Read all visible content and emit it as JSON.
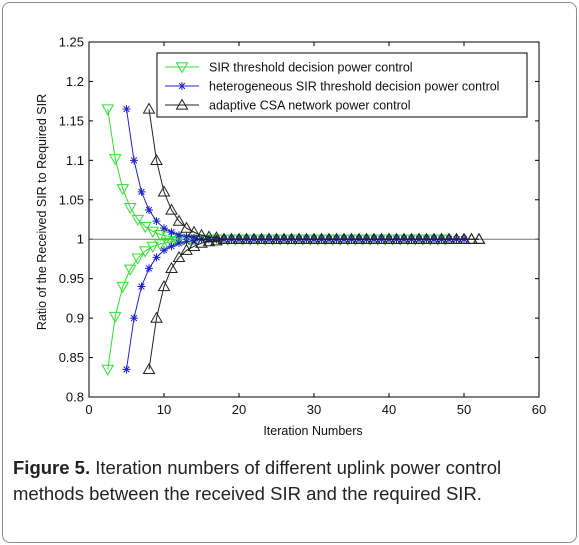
{
  "caption": {
    "label": "Figure 5.",
    "text": " Iteration numbers of different uplink power control methods between the received SIR and the required SIR."
  },
  "chart_data": {
    "type": "line",
    "xlabel": "Iteration Numbers",
    "ylabel": "Ratio of the Received SIR to Required SIR",
    "xlim": [
      0,
      60
    ],
    "ylim": [
      0.8,
      1.25
    ],
    "xticks": [
      0,
      10,
      20,
      30,
      40,
      50,
      60
    ],
    "yticks": [
      0.8,
      0.85,
      0.9,
      0.95,
      1,
      1.05,
      1.1,
      1.15,
      1.2,
      1.25
    ],
    "grid": false,
    "legend_position": "top-right",
    "reference_line": 1,
    "series": [
      {
        "name": "SIR threshold decision power control",
        "color": "#33dd33",
        "marker": "triangle-down",
        "start_x": 2.5,
        "end_x": 47,
        "upper": [
          1.165,
          1.102,
          1.064,
          1.04,
          1.025,
          1.016,
          1.01,
          1.006,
          1.004,
          1.002
        ],
        "lower": [
          0.835,
          0.902,
          0.94,
          0.962,
          0.976,
          0.985,
          0.991,
          0.994,
          0.996,
          0.998
        ]
      },
      {
        "name": "heterogeneous SIR threshold decision power control",
        "color": "#2222cc",
        "marker": "star",
        "start_x": 5,
        "end_x": 49.5,
        "upper": [
          1.165,
          1.1,
          1.06,
          1.037,
          1.023,
          1.014,
          1.009,
          1.005,
          1.003,
          1.002
        ],
        "lower": [
          0.835,
          0.9,
          0.94,
          0.963,
          0.977,
          0.986,
          0.991,
          0.995,
          0.997,
          0.998
        ]
      },
      {
        "name": "adaptive CSA network power control",
        "color": "#222222",
        "marker": "triangle-up",
        "start_x": 8,
        "end_x": 52,
        "upper": [
          1.165,
          1.1,
          1.06,
          1.037,
          1.023,
          1.014,
          1.009,
          1.005,
          1.003,
          1.002
        ],
        "lower": [
          0.835,
          0.9,
          0.94,
          0.963,
          0.977,
          0.986,
          0.991,
          0.995,
          0.997,
          0.998
        ]
      }
    ]
  }
}
